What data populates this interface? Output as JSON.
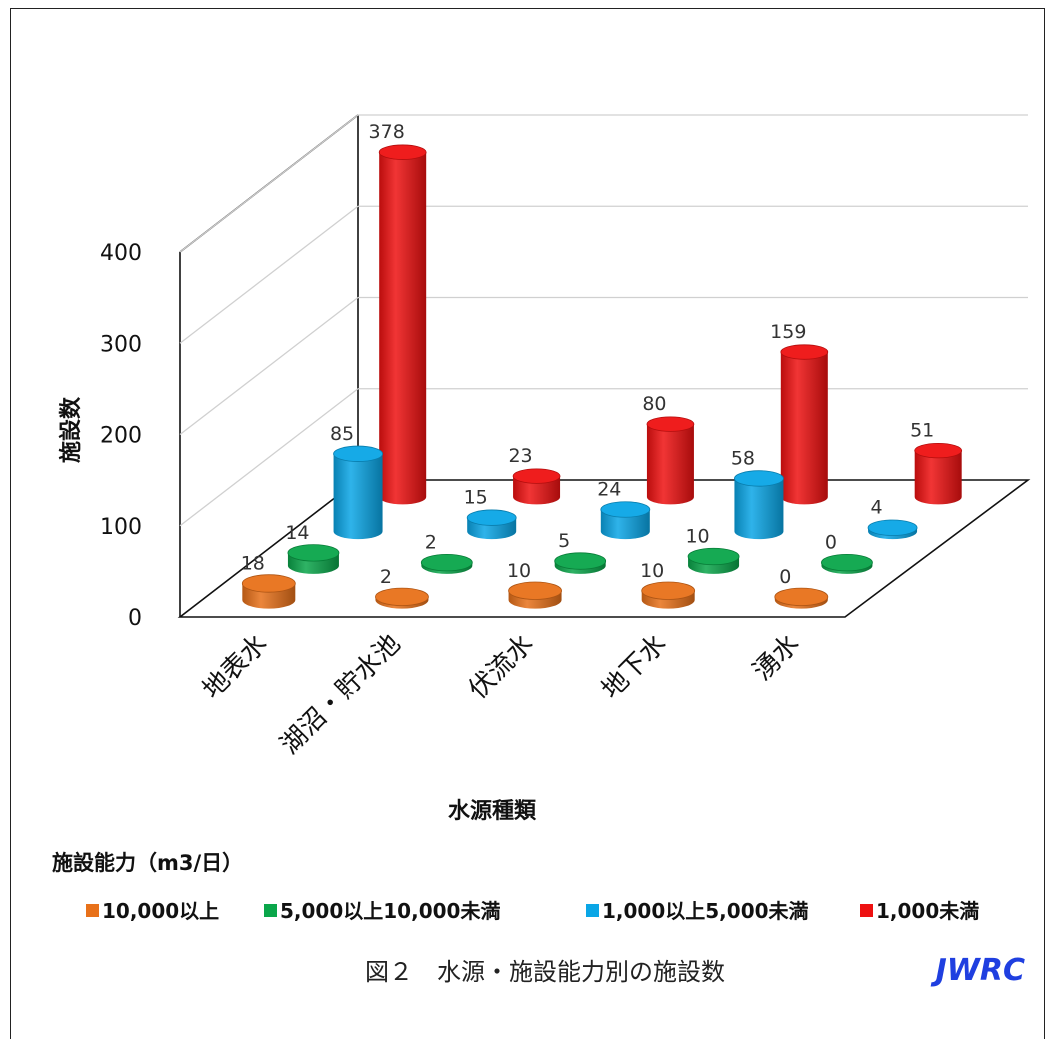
{
  "chart_data": {
    "type": "bar",
    "title": "",
    "xlabel": "水源種類",
    "ylabel": "施設数",
    "ylim": [
      0,
      400
    ],
    "y_ticks": [
      "0",
      "100",
      "200",
      "300",
      "400"
    ],
    "categories": [
      "地表水",
      "湖沼・貯水池",
      "伏流水",
      "地下水",
      "湧水"
    ],
    "series": [
      {
        "name": "10,000以上",
        "color": "#e8711a",
        "values": [
          18,
          2,
          10,
          10,
          0
        ]
      },
      {
        "name": "5,000以上10,000未満",
        "color": "#0aa64a",
        "values": [
          14,
          2,
          5,
          10,
          0
        ]
      },
      {
        "name": "1,000以上5,000未満",
        "color": "#0aa6e6",
        "values": [
          85,
          15,
          24,
          58,
          4
        ]
      },
      {
        "name": "1,000未満",
        "color": "#ee1111",
        "values": [
          378,
          23,
          80,
          159,
          51
        ]
      }
    ],
    "legend_title": "施設能力（m3/日）",
    "legend_position": "bottom",
    "grid": true,
    "style": "3d-cylinder"
  },
  "caption": "図２　水源・施設能力別の施設数",
  "logo": "JWRC"
}
